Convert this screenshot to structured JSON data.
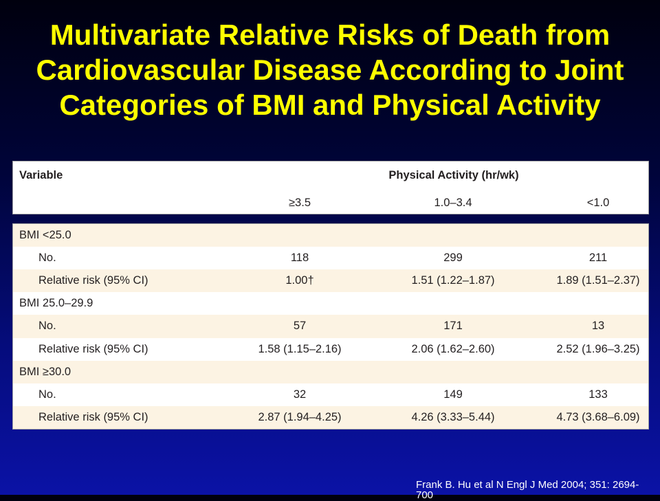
{
  "theme": {
    "title_color": "#ffff00",
    "citation_color": "#ffffff",
    "background_top": "#00000e",
    "background_bottom": "#0b12a6",
    "table_stripe": "#fcf3e3",
    "table_text": "#231f20"
  },
  "slide": {
    "title_lines": [
      "Multivariate Relative Risks of Death from",
      "Cardiovascular Disease According to Joint",
      "Categories of BMI and Physical Activity"
    ],
    "citation": [
      "Frank B. Hu et al N Engl J Med 2004; 351: 2694-",
      "700"
    ]
  },
  "table": {
    "header": {
      "variable_label": "Variable",
      "group_label": "Physical Activity (hr/wk)",
      "columns": [
        "≥3.5",
        "1.0–3.4",
        "<1.0"
      ]
    },
    "groups": [
      {
        "label": "BMI <25.0",
        "rows": [
          {
            "label": "No.",
            "values": [
              "118",
              "299",
              "211"
            ]
          },
          {
            "label": "Relative risk (95% CI)",
            "values": [
              "1.00†",
              "1.51 (1.22–1.87)",
              "1.89 (1.51–2.37)"
            ]
          }
        ]
      },
      {
        "label": "BMI 25.0–29.9",
        "rows": [
          {
            "label": "No.",
            "values": [
              "57",
              "171",
              "13"
            ]
          },
          {
            "label": "Relative risk (95% CI)",
            "values": [
              "1.58 (1.15–2.16)",
              "2.06 (1.62–2.60)",
              "2.52 (1.96–3.25)"
            ]
          }
        ]
      },
      {
        "label": "BMI ≥30.0",
        "rows": [
          {
            "label": "No.",
            "values": [
              "32",
              "149",
              "133"
            ]
          },
          {
            "label": "Relative risk (95% CI)",
            "values": [
              "2.87 (1.94–4.25)",
              "4.26 (3.33–5.44)",
              "4.73 (3.68–6.09)"
            ]
          }
        ]
      }
    ]
  }
}
